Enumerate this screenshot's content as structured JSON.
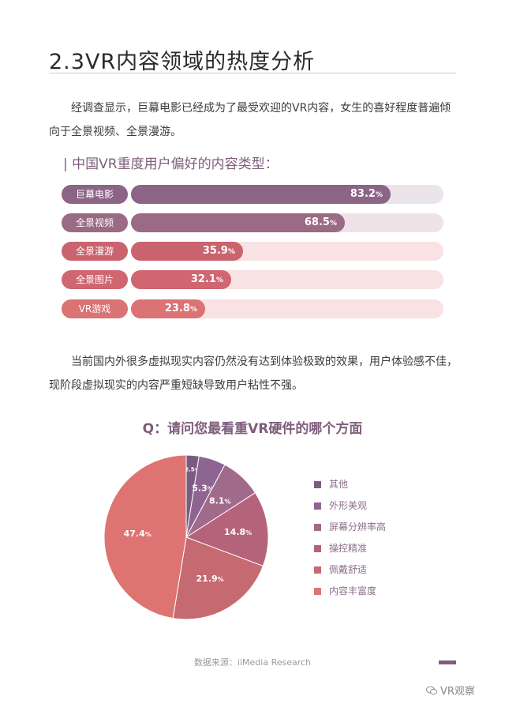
{
  "title": "2.3VR内容领域的热度分析",
  "paragraph1": "经调查显示，巨幕电影已经成为了最受欢迎的VR内容，女生的喜好程度普遍倾向于全景视频、全景漫游。",
  "bar_section": {
    "heading": "| 中国VR重度用户偏好的内容类型：",
    "unit": "%"
  },
  "paragraph2": "当前国内外很多虚拟现实内容仍然没有达到体验极致的效果，用户体验感不佳，现阶段虚拟现实的内容严重短缺导致用户粘性不强。",
  "pie_section": {
    "title": "Q：请问您最看重VR硬件的哪个方面"
  },
  "chart_data": [
    {
      "type": "bar",
      "title": "中国VR重度用户偏好的内容类型",
      "categories": [
        "巨幕电影",
        "全景视频",
        "全景漫游",
        "全景图片",
        "VR游戏"
      ],
      "values": [
        83.2,
        68.5,
        35.9,
        32.1,
        23.8
      ],
      "value_labels": [
        "83.2",
        "68.5",
        "35.9",
        "32.1",
        "23.8"
      ],
      "unit": "%",
      "xlim": [
        0,
        100
      ],
      "colors": [
        "#8b6486",
        "#9b6a85",
        "#c9646f",
        "#cf6670",
        "#db7273"
      ],
      "track_colors": [
        "#ebe4ea",
        "#ede3e8",
        "#f8e2e3",
        "#f8e2e3",
        "#f8e2e3"
      ]
    },
    {
      "type": "pie",
      "title": "Q：请问您最看重VR硬件的哪个方面",
      "categories": [
        "其他",
        "外形美观",
        "屏幕分辨率高",
        "操控精准",
        "佩戴舒适",
        "内容丰富度"
      ],
      "values": [
        2.5,
        5.3,
        8.1,
        14.8,
        21.9,
        47.4
      ],
      "value_labels": [
        "2.5",
        "5.3",
        "8.1",
        "14.8",
        "21.9",
        "47.4"
      ],
      "unit": "%",
      "colors": [
        "#7c5b83",
        "#8e6590",
        "#a06a8b",
        "#b5637a",
        "#c66a72",
        "#dd7472"
      ],
      "legend_position": "right"
    }
  ],
  "source": "数据来源：iiMedia Research",
  "brand": "VR观察"
}
